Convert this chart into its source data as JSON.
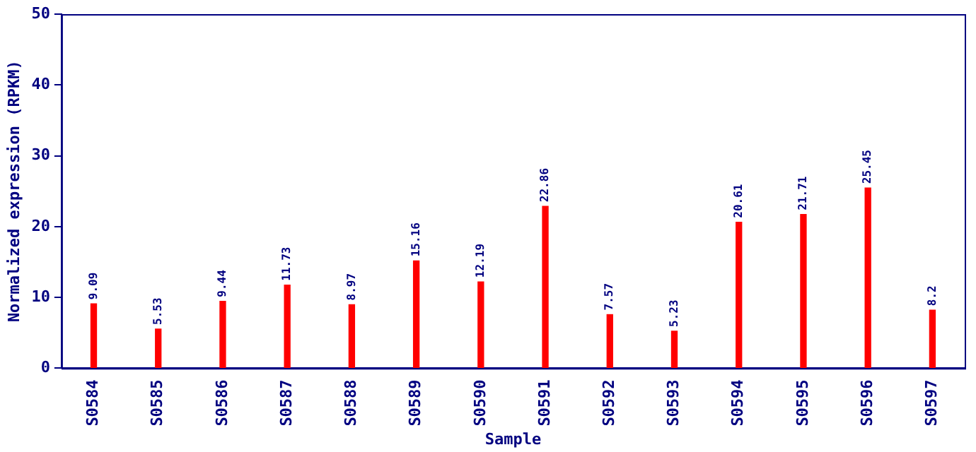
{
  "chart_data": {
    "type": "bar",
    "xlabel": "Sample",
    "ylabel": "Normalized expression (RPKM)",
    "categories": [
      "S0584",
      "S0585",
      "S0586",
      "S0587",
      "S0588",
      "S0589",
      "S0590",
      "S0591",
      "S0592",
      "S0593",
      "S0594",
      "S0595",
      "S0596",
      "S0597"
    ],
    "values": [
      9.09,
      5.53,
      9.44,
      11.73,
      8.97,
      15.16,
      12.19,
      22.86,
      7.57,
      5.23,
      20.61,
      21.71,
      25.45,
      8.2
    ],
    "color": "#ff0000",
    "ylim": [
      0,
      50
    ],
    "yticks": [
      0,
      10,
      20,
      30,
      40,
      50
    ],
    "grid": false,
    "legend": false,
    "data_labels": true
  }
}
